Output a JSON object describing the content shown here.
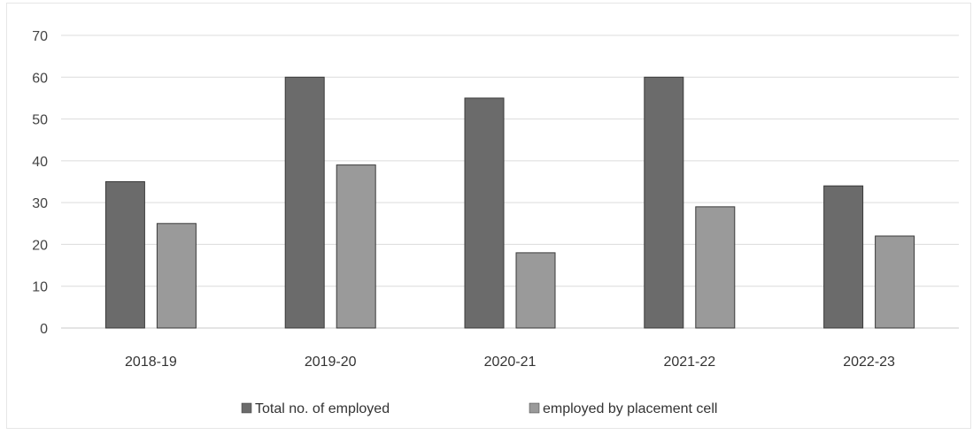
{
  "chart_data": {
    "type": "bar",
    "categories": [
      "2018-19",
      "2019-20",
      "2020-21",
      "2021-22",
      "2022-23"
    ],
    "series": [
      {
        "name": "Total no. of employed",
        "values": [
          35,
          60,
          55,
          60,
          34
        ],
        "color": "#6b6b6b"
      },
      {
        "name": "employed by placement cell",
        "values": [
          25,
          39,
          18,
          29,
          22
        ],
        "color": "#9a9a9a"
      }
    ],
    "ylim": [
      0,
      70
    ],
    "yticks": [
      0,
      10,
      20,
      30,
      40,
      50,
      60,
      70
    ],
    "grid": true,
    "legend_position": "bottom",
    "title": "",
    "xlabel": "",
    "ylabel": ""
  },
  "colors": {
    "gridline": "#dcdcdc",
    "axis": "#c8c8c8",
    "bar_edge": "#3a3a3a"
  }
}
